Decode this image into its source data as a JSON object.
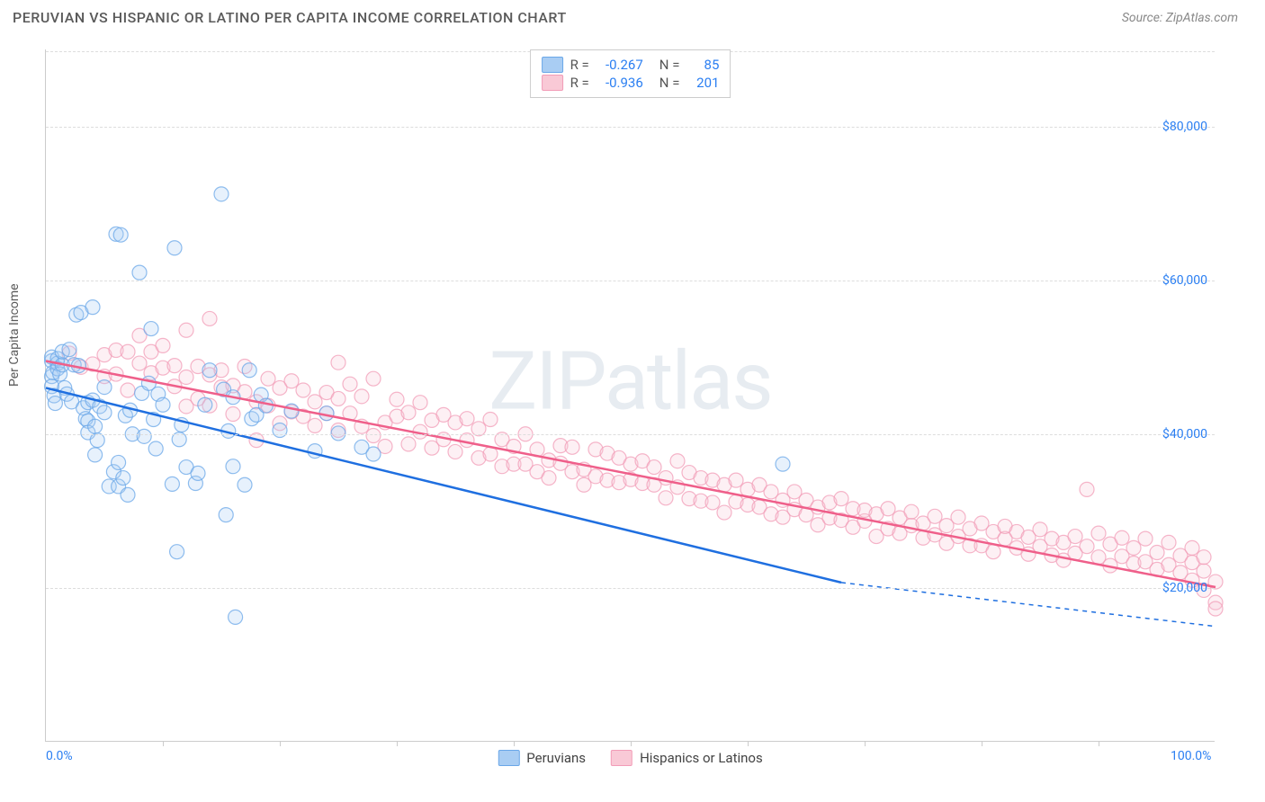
{
  "header": {
    "title": "PERUVIAN VS HISPANIC OR LATINO PER CAPITA INCOME CORRELATION CHART",
    "source": "Source: ZipAtlas.com"
  },
  "chart": {
    "type": "scatter",
    "watermark": "ZIPatlas",
    "y_label": "Per Capita Income",
    "xlim": [
      0,
      100
    ],
    "ylim": [
      0,
      90000
    ],
    "x_tick_labels": {
      "0": "0.0%",
      "100": "100.0%"
    },
    "y_ticks": [
      20000,
      40000,
      60000,
      80000
    ],
    "y_tick_labels": {
      "20000": "$20,000",
      "40000": "$40,000",
      "60000": "$60,000",
      "80000": "$80,000"
    },
    "x_minor_step": 10,
    "background_color": "#ffffff",
    "grid_color": "#dddddd",
    "marker_radius": 8,
    "marker_fill_opacity": 0.28,
    "marker_stroke_opacity": 0.75,
    "marker_stroke_width": 1.2,
    "trend_line_width": 2.5,
    "series": [
      {
        "name": "Peruvians",
        "color": "#6aa7e8",
        "fill": "#a9cdf3",
        "R": "-0.267",
        "N": "85",
        "trend": {
          "x1": 0,
          "y1": 46000,
          "x2": 68,
          "y2": 20700,
          "dash_to_x": 100,
          "dash_to_y": 15000
        },
        "points": [
          [
            0.5,
            47500
          ],
          [
            0.5,
            49500
          ],
          [
            0.5,
            50000
          ],
          [
            0.5,
            46200
          ],
          [
            0.7,
            45000
          ],
          [
            0.6,
            48000
          ],
          [
            1.0,
            49200
          ],
          [
            1.0,
            49800
          ],
          [
            1.0,
            48500
          ],
          [
            0.8,
            44000
          ],
          [
            1.2,
            47800
          ],
          [
            1.4,
            49000
          ],
          [
            1.4,
            50700
          ],
          [
            1.6,
            46000
          ],
          [
            1.8,
            45200
          ],
          [
            2.0,
            51000
          ],
          [
            2.2,
            44200
          ],
          [
            2.4,
            49000
          ],
          [
            2.6,
            55500
          ],
          [
            2.8,
            48900
          ],
          [
            3.0,
            55800
          ],
          [
            3.2,
            43400
          ],
          [
            3.4,
            42000
          ],
          [
            3.6,
            41700
          ],
          [
            3.6,
            44100
          ],
          [
            3.6,
            40200
          ],
          [
            4.0,
            56500
          ],
          [
            4.0,
            44400
          ],
          [
            4.2,
            41000
          ],
          [
            4.2,
            37300
          ],
          [
            4.4,
            39200
          ],
          [
            4.6,
            43600
          ],
          [
            5.0,
            46100
          ],
          [
            5.0,
            42800
          ],
          [
            5.4,
            33200
          ],
          [
            5.8,
            35100
          ],
          [
            6.0,
            66000
          ],
          [
            6.2,
            33200
          ],
          [
            6.2,
            36300
          ],
          [
            6.4,
            65900
          ],
          [
            6.6,
            34300
          ],
          [
            6.8,
            42400
          ],
          [
            7.0,
            32100
          ],
          [
            7.2,
            43100
          ],
          [
            7.4,
            40000
          ],
          [
            8.0,
            61000
          ],
          [
            8.2,
            45300
          ],
          [
            8.4,
            39700
          ],
          [
            8.8,
            46600
          ],
          [
            9.0,
            53700
          ],
          [
            9.2,
            41900
          ],
          [
            9.4,
            38100
          ],
          [
            9.6,
            45200
          ],
          [
            10.0,
            43800
          ],
          [
            10.8,
            33500
          ],
          [
            11.0,
            64200
          ],
          [
            11.2,
            24700
          ],
          [
            11.4,
            39300
          ],
          [
            11.6,
            41200
          ],
          [
            12.0,
            35700
          ],
          [
            12.8,
            33600
          ],
          [
            13.0,
            34900
          ],
          [
            13.6,
            43800
          ],
          [
            14.0,
            48300
          ],
          [
            15.0,
            71200
          ],
          [
            15.2,
            45800
          ],
          [
            15.4,
            29500
          ],
          [
            15.6,
            40400
          ],
          [
            16.0,
            35800
          ],
          [
            16.0,
            44800
          ],
          [
            16.2,
            16200
          ],
          [
            17.0,
            33400
          ],
          [
            17.4,
            48300
          ],
          [
            17.6,
            42000
          ],
          [
            18.0,
            42500
          ],
          [
            18.4,
            45100
          ],
          [
            18.8,
            43700
          ],
          [
            20.0,
            40500
          ],
          [
            21.0,
            43000
          ],
          [
            23.0,
            37800
          ],
          [
            24.0,
            42700
          ],
          [
            25.0,
            40100
          ],
          [
            27.0,
            38300
          ],
          [
            28.0,
            37400
          ],
          [
            63.0,
            36100
          ]
        ]
      },
      {
        "name": "Hispanics or Latinos",
        "color": "#f29cb7",
        "fill": "#f9c9d6",
        "R": "-0.936",
        "N": "201",
        "trend": {
          "x1": 0,
          "y1": 49500,
          "x2": 100,
          "y2": 20100
        },
        "points": [
          [
            2,
            50500
          ],
          [
            3,
            48700
          ],
          [
            4,
            49100
          ],
          [
            5,
            47500
          ],
          [
            5,
            50300
          ],
          [
            6,
            50900
          ],
          [
            6,
            47800
          ],
          [
            7,
            50700
          ],
          [
            7,
            45700
          ],
          [
            8,
            49200
          ],
          [
            8,
            52800
          ],
          [
            9,
            50700
          ],
          [
            9,
            47950
          ],
          [
            10,
            51500
          ],
          [
            10,
            48600
          ],
          [
            11,
            48900
          ],
          [
            11,
            46200
          ],
          [
            12,
            47400
          ],
          [
            12,
            43600
          ],
          [
            12,
            53500
          ],
          [
            13,
            44600
          ],
          [
            13,
            48800
          ],
          [
            14,
            47700
          ],
          [
            14,
            43700
          ],
          [
            14,
            55000
          ],
          [
            15,
            46100
          ],
          [
            15,
            48300
          ],
          [
            16,
            42600
          ],
          [
            16,
            46300
          ],
          [
            17,
            45500
          ],
          [
            17,
            48800
          ],
          [
            18,
            39200
          ],
          [
            18,
            44200
          ],
          [
            19,
            47200
          ],
          [
            19,
            43700
          ],
          [
            20,
            46000
          ],
          [
            20,
            41400
          ],
          [
            21,
            42900
          ],
          [
            21,
            46900
          ],
          [
            22,
            42300
          ],
          [
            22,
            45700
          ],
          [
            23,
            41100
          ],
          [
            23,
            44200
          ],
          [
            24,
            45400
          ],
          [
            24,
            42700
          ],
          [
            25,
            49300
          ],
          [
            25,
            44600
          ],
          [
            25,
            40500
          ],
          [
            26,
            46500
          ],
          [
            26,
            42700
          ],
          [
            27,
            41000
          ],
          [
            27,
            44900
          ],
          [
            28,
            39800
          ],
          [
            28,
            47200
          ],
          [
            29,
            41500
          ],
          [
            29,
            38400
          ],
          [
            30,
            44500
          ],
          [
            30,
            42300
          ],
          [
            31,
            38700
          ],
          [
            31,
            42800
          ],
          [
            32,
            40300
          ],
          [
            32,
            44100
          ],
          [
            33,
            38200
          ],
          [
            33,
            41800
          ],
          [
            34,
            39300
          ],
          [
            34,
            42500
          ],
          [
            35,
            41500
          ],
          [
            35,
            37700
          ],
          [
            36,
            39200
          ],
          [
            36,
            42000
          ],
          [
            37,
            36900
          ],
          [
            37,
            40700
          ],
          [
            38,
            41900
          ],
          [
            38,
            37400
          ],
          [
            39,
            39300
          ],
          [
            39,
            35800
          ],
          [
            40,
            38400
          ],
          [
            40,
            36100
          ],
          [
            41,
            40000
          ],
          [
            41,
            36100
          ],
          [
            42,
            35100
          ],
          [
            42,
            38000
          ],
          [
            43,
            36600
          ],
          [
            43,
            34300
          ],
          [
            44,
            38500
          ],
          [
            44,
            36200
          ],
          [
            45,
            35100
          ],
          [
            45,
            38300
          ],
          [
            46,
            35400
          ],
          [
            46,
            33400
          ],
          [
            47,
            38000
          ],
          [
            47,
            34500
          ],
          [
            48,
            37500
          ],
          [
            48,
            34000
          ],
          [
            49,
            33700
          ],
          [
            49,
            36900
          ],
          [
            50,
            36100
          ],
          [
            50,
            34100
          ],
          [
            51,
            36500
          ],
          [
            51,
            33600
          ],
          [
            52,
            33400
          ],
          [
            52,
            35700
          ],
          [
            53,
            34300
          ],
          [
            53,
            31700
          ],
          [
            54,
            36500
          ],
          [
            54,
            33100
          ],
          [
            55,
            35000
          ],
          [
            55,
            31600
          ],
          [
            56,
            34300
          ],
          [
            56,
            31300
          ],
          [
            57,
            31100
          ],
          [
            57,
            34000
          ],
          [
            58,
            29800
          ],
          [
            58,
            33400
          ],
          [
            59,
            34000
          ],
          [
            59,
            31200
          ],
          [
            60,
            30800
          ],
          [
            60,
            32800
          ],
          [
            61,
            30500
          ],
          [
            61,
            33400
          ],
          [
            62,
            29600
          ],
          [
            62,
            32500
          ],
          [
            63,
            31400
          ],
          [
            63,
            29200
          ],
          [
            64,
            32500
          ],
          [
            64,
            30200
          ],
          [
            65,
            31400
          ],
          [
            65,
            29500
          ],
          [
            66,
            28200
          ],
          [
            66,
            30500
          ],
          [
            67,
            31100
          ],
          [
            67,
            29100
          ],
          [
            68,
            31600
          ],
          [
            68,
            28800
          ],
          [
            69,
            27900
          ],
          [
            69,
            30300
          ],
          [
            70,
            28700
          ],
          [
            70,
            30100
          ],
          [
            71,
            26700
          ],
          [
            71,
            29600
          ],
          [
            72,
            30300
          ],
          [
            72,
            27700
          ],
          [
            73,
            29100
          ],
          [
            73,
            27100
          ],
          [
            74,
            28100
          ],
          [
            74,
            29900
          ],
          [
            75,
            26500
          ],
          [
            75,
            28400
          ],
          [
            76,
            26900
          ],
          [
            76,
            29300
          ],
          [
            77,
            28100
          ],
          [
            77,
            25800
          ],
          [
            78,
            29200
          ],
          [
            78,
            26700
          ],
          [
            79,
            25500
          ],
          [
            79,
            27700
          ],
          [
            80,
            28400
          ],
          [
            80,
            25500
          ],
          [
            81,
            27300
          ],
          [
            81,
            24700
          ],
          [
            82,
            26400
          ],
          [
            82,
            28000
          ],
          [
            83,
            27300
          ],
          [
            83,
            25200
          ],
          [
            84,
            26600
          ],
          [
            84,
            24400
          ],
          [
            85,
            25400
          ],
          [
            85,
            27600
          ],
          [
            86,
            26400
          ],
          [
            86,
            24250
          ],
          [
            87,
            23600
          ],
          [
            87,
            25900
          ],
          [
            88,
            26700
          ],
          [
            88,
            24500
          ],
          [
            89,
            32800
          ],
          [
            89,
            25400
          ],
          [
            90,
            27100
          ],
          [
            90,
            24000
          ],
          [
            91,
            25700
          ],
          [
            91,
            22900
          ],
          [
            92,
            26500
          ],
          [
            92,
            24100
          ],
          [
            93,
            23200
          ],
          [
            93,
            25200
          ],
          [
            94,
            26400
          ],
          [
            94,
            23400
          ],
          [
            95,
            22400
          ],
          [
            95,
            24600
          ],
          [
            96,
            25900
          ],
          [
            96,
            23000
          ],
          [
            97,
            22000
          ],
          [
            97,
            24200
          ],
          [
            98,
            21000
          ],
          [
            98,
            23300
          ],
          [
            98,
            25200
          ],
          [
            99,
            19700
          ],
          [
            99,
            22200
          ],
          [
            99,
            24000
          ],
          [
            100,
            18100
          ],
          [
            100,
            20800
          ],
          [
            100,
            17300
          ]
        ]
      }
    ]
  }
}
